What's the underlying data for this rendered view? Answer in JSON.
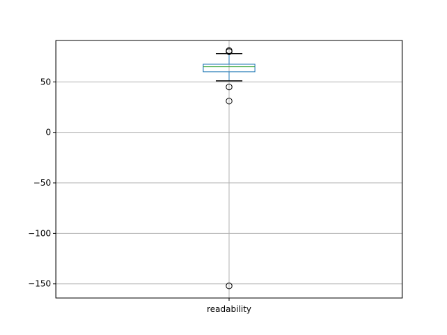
{
  "chart_data": {
    "type": "box",
    "categories": [
      "readability"
    ],
    "ylim": [
      -164,
      91
    ],
    "yticks": [
      50,
      0,
      -50,
      -100,
      -150
    ],
    "ytick_labels": [
      "50",
      "0",
      "−50",
      "−100",
      "−150"
    ],
    "grid": true,
    "boxes": [
      {
        "name": "readability",
        "whisker_low": 51,
        "q1": 60,
        "median": 65,
        "q3": 67.5,
        "whisker_high": 78,
        "outliers": [
          81,
          80,
          80,
          45,
          31,
          -152
        ]
      }
    ]
  },
  "colors": {
    "box": "#1f77b4",
    "median": "#2ca02c",
    "whisker": "#000000",
    "grid": "#b0b0b0"
  }
}
